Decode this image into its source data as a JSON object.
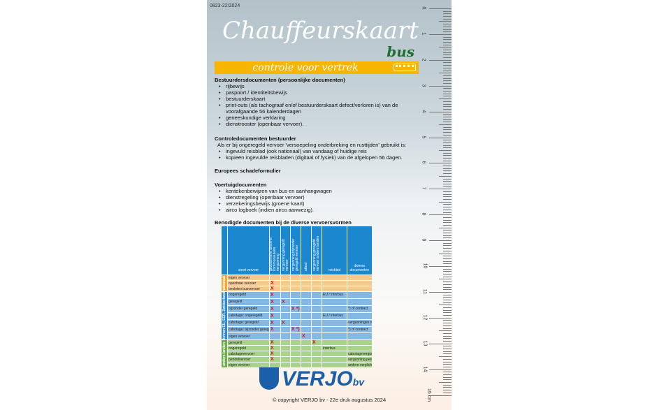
{
  "code": "0823-22/2024",
  "title": "Chauffeurskaart",
  "subtitle": "bus",
  "banner": "controle voor vertrek",
  "icons": {
    "banner": "bus-icon",
    "logo": "verjo-shield-logo"
  },
  "sections": [
    {
      "heading": "Bestuurdersdocumenten (persoonlijke documenten)",
      "items": [
        "rijbewijs",
        "paspoort / identiteitsbewijs",
        "bestuurderskaart",
        "print-outs (als tachograaf en/of bestuurderskaart defect/verloren is) van de voorafgaande 56 kalenderdagen",
        "geneeskundige verklaring",
        "dienstrooster (openbaar vervoer)."
      ]
    },
    {
      "heading": "Controledocumenten bestuurder",
      "intro": "Als er bij ongeregeld vervoer 'versoepeling onderbreking en rusttijden' gebruikt is:",
      "items": [
        "ingevuld reisblad (ook nationaal) van vandaag of huidige reis",
        "kopieën ingevulde reisbladen (digitaal of fysiek) van de afgelopen 56 dagen."
      ]
    },
    {
      "heading": "Europees schadeformulier",
      "items": []
    },
    {
      "heading": "Voertuigdocumenten",
      "items": [
        "kentekenbewijzen van bus en aanhangwagen",
        "dienstregeling (openbaar vervoer)",
        "verzekeringsbewijs (groene kaart)",
        "airco logboek (indien airco aanwezig)."
      ]
    }
  ],
  "table": {
    "title": "Benodigde documenten bij de diverse vervoersvormen",
    "headers": [
      "soort vervoer",
      "gewaarmerkt afschrift communautaire vergunning",
      "vergunning geregeld vervoer",
      "vergunning bijzonder geregeld vervoer",
      "attest",
      "vergunning geregeld vervoer andere landen",
      "reisblad",
      "diverse documenten"
    ],
    "groups": [
      {
        "label": "nationaal",
        "color": "#f8c98e",
        "side": "#f5a93c",
        "rows": [
          [
            "eigen vervoer",
            "",
            "",
            "",
            "",
            "",
            "",
            ""
          ],
          [
            "openbaar vervoer",
            "X",
            "",
            "",
            "",
            "",
            "",
            ""
          ],
          [
            "besloten busvervoer",
            "X",
            "",
            "",
            "",
            "",
            "",
            ""
          ]
        ]
      },
      {
        "label": "binnen EU, EER, Zwitserland",
        "color": "#86b8e4",
        "side": "#2f8ad3",
        "rows": [
          [
            "ongeregeld",
            "X",
            "",
            "",
            "",
            "",
            "EU / interbus",
            ""
          ],
          [
            "geregeld",
            "X",
            "X",
            "",
            "",
            "",
            "",
            ""
          ],
          [
            "bijzonder geregeld",
            "X",
            "",
            "X *)",
            "",
            "",
            "",
            "*) of contract"
          ],
          [
            "cabotage: ongeregeld",
            "X",
            "",
            "",
            "",
            "",
            "EU / interbus",
            ""
          ],
          [
            "cabotage: geregeld",
            "X",
            "X",
            "",
            "",
            "",
            "",
            "vergunningen regionale autoriteiten"
          ],
          [
            "cabotage: bijzonder geregeld",
            "X",
            "",
            "X *)",
            "",
            "",
            "",
            "*) of contract"
          ],
          [
            "eigen vervoer",
            "",
            "",
            "",
            "X",
            "",
            "",
            ""
          ]
        ]
      },
      {
        "label": "andere landen",
        "color": "#a8d28e",
        "side": "#6db14c",
        "rows": [
          [
            "geregeld",
            "X",
            "",
            "",
            "",
            "X",
            "",
            ""
          ],
          [
            "ongeregeld",
            "X",
            "",
            "",
            "",
            "",
            "interbus",
            ""
          ],
          [
            "cabotagevervoer",
            "X",
            "",
            "",
            "",
            "",
            "",
            "cabotagevergunning"
          ],
          [
            "pendelvervoer",
            "X",
            "",
            "",
            "",
            "",
            "",
            "vergunning pendelvervoer"
          ],
          [
            "eigen vervoer",
            "",
            "",
            "",
            "",
            "",
            "",
            "andere verplichte documenten"
          ]
        ]
      }
    ]
  },
  "logo": {
    "name": "VERJO",
    "suffix": "bv"
  },
  "copyright": "© copyright VERJO bv - 22e druk augustus 2024",
  "ruler": [
    "0",
    "1",
    "2",
    "3",
    "4",
    "5",
    "6",
    "7",
    "8",
    "9",
    "10",
    "11",
    "12",
    "13",
    "14",
    "15 cm"
  ]
}
